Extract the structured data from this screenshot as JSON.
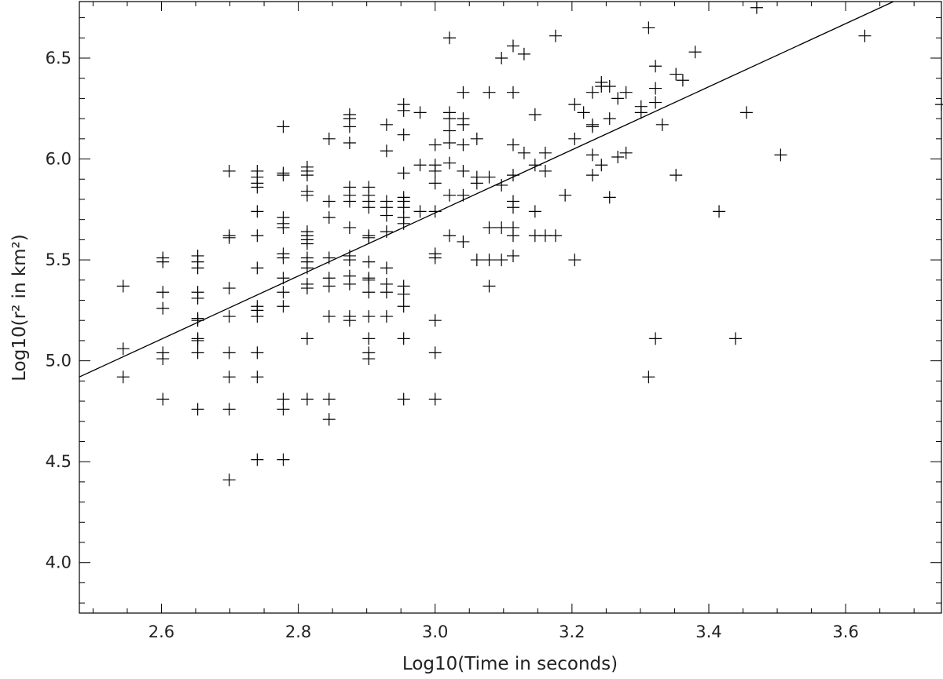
{
  "chart_data": {
    "type": "scatter",
    "xlabel": "Log10(Time in seconds)",
    "ylabel": "Log10(r² in km²)",
    "xlim": [
      2.48,
      3.74
    ],
    "ylim": [
      3.75,
      6.78
    ],
    "x_ticks": [
      "2.6",
      "2.8",
      "3.0",
      "3.2",
      "3.4",
      "3.6"
    ],
    "y_ticks": [
      "4.0",
      "4.5",
      "5.0",
      "5.5",
      "6.0",
      "6.5"
    ],
    "x_tick_values": [
      2.6,
      2.8,
      3.0,
      3.2,
      3.4,
      3.6
    ],
    "y_tick_values": [
      4.0,
      4.5,
      5.0,
      5.5,
      6.0,
      6.5
    ],
    "grid": false,
    "marker": "plus",
    "color": "#000000",
    "fit_line": {
      "x": [
        2.48,
        3.67
      ],
      "y": [
        4.92,
        6.78
      ]
    },
    "points": [
      [
        2.544,
        5.37
      ],
      [
        2.544,
        5.06
      ],
      [
        2.544,
        4.92
      ],
      [
        2.602,
        5.51
      ],
      [
        2.602,
        5.49
      ],
      [
        2.602,
        5.34
      ],
      [
        2.602,
        5.26
      ],
      [
        2.602,
        5.04
      ],
      [
        2.602,
        5.01
      ],
      [
        2.602,
        4.81
      ],
      [
        2.653,
        5.52
      ],
      [
        2.653,
        5.49
      ],
      [
        2.653,
        5.46
      ],
      [
        2.653,
        5.34
      ],
      [
        2.653,
        5.31
      ],
      [
        2.653,
        5.21
      ],
      [
        2.653,
        5.2
      ],
      [
        2.653,
        5.11
      ],
      [
        2.653,
        5.1
      ],
      [
        2.653,
        5.04
      ],
      [
        2.653,
        4.76
      ],
      [
        2.699,
        5.94
      ],
      [
        2.699,
        5.62
      ],
      [
        2.699,
        5.61
      ],
      [
        2.699,
        5.36
      ],
      [
        2.699,
        5.22
      ],
      [
        2.699,
        5.04
      ],
      [
        2.699,
        4.92
      ],
      [
        2.699,
        4.76
      ],
      [
        2.699,
        4.41
      ],
      [
        2.74,
        5.94
      ],
      [
        2.74,
        5.91
      ],
      [
        2.74,
        5.88
      ],
      [
        2.74,
        5.86
      ],
      [
        2.74,
        5.74
      ],
      [
        2.74,
        5.62
      ],
      [
        2.74,
        5.46
      ],
      [
        2.74,
        5.27
      ],
      [
        2.74,
        5.25
      ],
      [
        2.74,
        5.22
      ],
      [
        2.74,
        5.04
      ],
      [
        2.74,
        4.92
      ],
      [
        2.74,
        4.51
      ],
      [
        2.778,
        6.16
      ],
      [
        2.778,
        5.93
      ],
      [
        2.778,
        5.92
      ],
      [
        2.778,
        5.71
      ],
      [
        2.778,
        5.68
      ],
      [
        2.778,
        5.66
      ],
      [
        2.778,
        5.53
      ],
      [
        2.778,
        5.51
      ],
      [
        2.778,
        5.41
      ],
      [
        2.778,
        5.34
      ],
      [
        2.778,
        5.27
      ],
      [
        2.778,
        4.81
      ],
      [
        2.778,
        4.76
      ],
      [
        2.778,
        4.51
      ],
      [
        2.813,
        5.96
      ],
      [
        2.813,
        5.94
      ],
      [
        2.813,
        5.92
      ],
      [
        2.813,
        5.84
      ],
      [
        2.813,
        5.82
      ],
      [
        2.813,
        5.64
      ],
      [
        2.813,
        5.62
      ],
      [
        2.813,
        5.6
      ],
      [
        2.813,
        5.58
      ],
      [
        2.813,
        5.51
      ],
      [
        2.813,
        5.49
      ],
      [
        2.813,
        5.46
      ],
      [
        2.813,
        5.38
      ],
      [
        2.813,
        5.36
      ],
      [
        2.813,
        5.11
      ],
      [
        2.813,
        4.81
      ],
      [
        2.845,
        6.1
      ],
      [
        2.845,
        5.79
      ],
      [
        2.845,
        5.71
      ],
      [
        2.845,
        5.51
      ],
      [
        2.845,
        5.41
      ],
      [
        2.845,
        5.37
      ],
      [
        2.845,
        5.22
      ],
      [
        2.845,
        4.81
      ],
      [
        2.845,
        4.71
      ],
      [
        2.875,
        6.22
      ],
      [
        2.875,
        6.2
      ],
      [
        2.875,
        6.16
      ],
      [
        2.875,
        6.08
      ],
      [
        2.875,
        5.86
      ],
      [
        2.875,
        5.82
      ],
      [
        2.875,
        5.79
      ],
      [
        2.875,
        5.66
      ],
      [
        2.875,
        5.52
      ],
      [
        2.875,
        5.5
      ],
      [
        2.875,
        5.42
      ],
      [
        2.875,
        5.38
      ],
      [
        2.875,
        5.22
      ],
      [
        2.875,
        5.2
      ],
      [
        2.903,
        5.86
      ],
      [
        2.903,
        5.82
      ],
      [
        2.903,
        5.79
      ],
      [
        2.903,
        5.76
      ],
      [
        2.903,
        5.62
      ],
      [
        2.903,
        5.61
      ],
      [
        2.903,
        5.49
      ],
      [
        2.903,
        5.41
      ],
      [
        2.903,
        5.4
      ],
      [
        2.903,
        5.34
      ],
      [
        2.903,
        5.22
      ],
      [
        2.903,
        5.11
      ],
      [
        2.903,
        5.04
      ],
      [
        2.903,
        5.01
      ],
      [
        2.929,
        6.17
      ],
      [
        2.929,
        6.04
      ],
      [
        2.929,
        5.79
      ],
      [
        2.929,
        5.76
      ],
      [
        2.929,
        5.72
      ],
      [
        2.929,
        5.64
      ],
      [
        2.929,
        5.46
      ],
      [
        2.929,
        5.38
      ],
      [
        2.929,
        5.34
      ],
      [
        2.929,
        5.22
      ],
      [
        2.954,
        6.27
      ],
      [
        2.954,
        6.24
      ],
      [
        2.954,
        6.12
      ],
      [
        2.954,
        5.93
      ],
      [
        2.954,
        5.81
      ],
      [
        2.954,
        5.79
      ],
      [
        2.954,
        5.76
      ],
      [
        2.954,
        5.71
      ],
      [
        2.954,
        5.68
      ],
      [
        2.954,
        5.37
      ],
      [
        2.954,
        5.33
      ],
      [
        2.954,
        5.27
      ],
      [
        2.954,
        5.11
      ],
      [
        2.954,
        4.81
      ],
      [
        2.978,
        6.23
      ],
      [
        2.978,
        5.97
      ],
      [
        2.978,
        5.74
      ],
      [
        3.0,
        6.07
      ],
      [
        3.0,
        5.97
      ],
      [
        3.0,
        5.94
      ],
      [
        3.0,
        5.88
      ],
      [
        3.0,
        5.74
      ],
      [
        3.0,
        5.53
      ],
      [
        3.0,
        5.51
      ],
      [
        3.0,
        5.2
      ],
      [
        3.0,
        5.04
      ],
      [
        3.0,
        4.81
      ],
      [
        3.021,
        6.6
      ],
      [
        3.021,
        6.23
      ],
      [
        3.021,
        6.2
      ],
      [
        3.021,
        6.14
      ],
      [
        3.021,
        6.08
      ],
      [
        3.021,
        5.98
      ],
      [
        3.021,
        5.82
      ],
      [
        3.021,
        5.62
      ],
      [
        3.041,
        6.33
      ],
      [
        3.041,
        6.2
      ],
      [
        3.041,
        6.17
      ],
      [
        3.041,
        6.07
      ],
      [
        3.041,
        5.94
      ],
      [
        3.041,
        5.82
      ],
      [
        3.041,
        5.59
      ],
      [
        3.061,
        6.1
      ],
      [
        3.061,
        5.91
      ],
      [
        3.061,
        5.88
      ],
      [
        3.061,
        5.5
      ],
      [
        3.079,
        6.33
      ],
      [
        3.079,
        5.91
      ],
      [
        3.079,
        5.66
      ],
      [
        3.079,
        5.5
      ],
      [
        3.079,
        5.37
      ],
      [
        3.097,
        6.5
      ],
      [
        3.097,
        5.87
      ],
      [
        3.097,
        5.66
      ],
      [
        3.097,
        5.5
      ],
      [
        3.114,
        6.56
      ],
      [
        3.114,
        6.33
      ],
      [
        3.114,
        6.07
      ],
      [
        3.114,
        5.92
      ],
      [
        3.114,
        5.79
      ],
      [
        3.114,
        5.76
      ],
      [
        3.114,
        5.66
      ],
      [
        3.114,
        5.62
      ],
      [
        3.114,
        5.52
      ],
      [
        3.13,
        6.52
      ],
      [
        3.13,
        6.03
      ],
      [
        3.146,
        6.22
      ],
      [
        3.146,
        5.97
      ],
      [
        3.146,
        5.74
      ],
      [
        3.146,
        5.62
      ],
      [
        3.161,
        6.03
      ],
      [
        3.161,
        5.94
      ],
      [
        3.161,
        5.62
      ],
      [
        3.176,
        6.61
      ],
      [
        3.176,
        5.62
      ],
      [
        3.19,
        5.82
      ],
      [
        3.204,
        6.27
      ],
      [
        3.204,
        6.1
      ],
      [
        3.204,
        5.5
      ],
      [
        3.217,
        6.23
      ],
      [
        3.23,
        6.33
      ],
      [
        3.23,
        6.17
      ],
      [
        3.23,
        6.16
      ],
      [
        3.23,
        6.02
      ],
      [
        3.23,
        5.92
      ],
      [
        3.243,
        6.38
      ],
      [
        3.243,
        6.36
      ],
      [
        3.243,
        5.97
      ],
      [
        3.255,
        6.36
      ],
      [
        3.255,
        6.2
      ],
      [
        3.255,
        5.81
      ],
      [
        3.267,
        6.3
      ],
      [
        3.267,
        6.01
      ],
      [
        3.279,
        6.33
      ],
      [
        3.279,
        6.03
      ],
      [
        3.301,
        6.26
      ],
      [
        3.301,
        6.23
      ],
      [
        3.312,
        6.65
      ],
      [
        3.312,
        4.92
      ],
      [
        3.322,
        6.46
      ],
      [
        3.322,
        6.35
      ],
      [
        3.322,
        6.28
      ],
      [
        3.322,
        5.11
      ],
      [
        3.332,
        6.17
      ],
      [
        3.352,
        6.42
      ],
      [
        3.352,
        5.92
      ],
      [
        3.362,
        6.39
      ],
      [
        3.38,
        6.53
      ],
      [
        3.415,
        5.74
      ],
      [
        3.439,
        5.11
      ],
      [
        3.455,
        6.23
      ],
      [
        3.47,
        6.75
      ],
      [
        3.505,
        6.02
      ],
      [
        3.628,
        6.61
      ],
      [
        3.74,
        6.27
      ]
    ]
  }
}
